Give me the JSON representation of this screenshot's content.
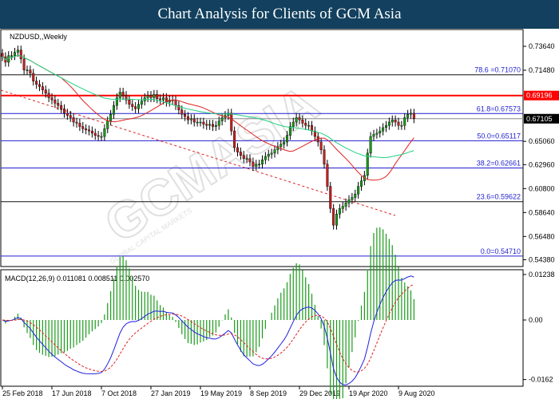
{
  "header": {
    "title": "Chart Analysis for Clients of GCM Asia"
  },
  "watermark": "GCMASIA",
  "watermark_sub": "GLOBAL CAPITAL MARKETS",
  "chart_data": [
    {
      "type": "candlestick",
      "symbol_label": "NZDUSD,,Weekly",
      "ylim": [
        0.5438,
        0.7364
      ],
      "y_ticks": [
        "0.73640",
        "0.71480",
        "0.65060",
        "0.62960",
        "0.60800",
        "0.58640",
        "0.56480",
        "0.54380"
      ],
      "y_tick_values": [
        0.7364,
        0.7148,
        0.6506,
        0.6296,
        0.608,
        0.5864,
        0.5648,
        0.5438
      ],
      "x_ticks": [
        "25 Feb 2018",
        "17 Jun 2018",
        "7 Oct 2018",
        "27 Jan 2019",
        "19 May 2019",
        "8 Sep 2019",
        "29 Dec 2019",
        "19 Apr 2020",
        "9 Aug 2020"
      ],
      "x_tick_weeks": [
        0,
        16,
        32,
        48,
        64,
        80,
        96,
        112,
        128
      ],
      "closes": [
        0.727,
        0.722,
        0.728,
        0.728,
        0.731,
        0.733,
        0.725,
        0.715,
        0.715,
        0.712,
        0.705,
        0.702,
        0.7,
        0.697,
        0.694,
        0.69,
        0.688,
        0.685,
        0.683,
        0.68,
        0.676,
        0.674,
        0.672,
        0.668,
        0.667,
        0.664,
        0.662,
        0.661,
        0.66,
        0.658,
        0.656,
        0.655,
        0.655,
        0.662,
        0.669,
        0.675,
        0.683,
        0.69,
        0.695,
        0.692,
        0.688,
        0.684,
        0.682,
        0.68,
        0.684,
        0.687,
        0.69,
        0.692,
        0.69,
        0.693,
        0.689,
        0.688,
        0.69,
        0.686,
        0.688,
        0.688,
        0.683,
        0.679,
        0.675,
        0.673,
        0.67,
        0.671,
        0.668,
        0.668,
        0.668,
        0.666,
        0.665,
        0.666,
        0.664,
        0.665,
        0.669,
        0.672,
        0.674,
        0.676,
        0.66,
        0.645,
        0.641,
        0.638,
        0.635,
        0.635,
        0.632,
        0.628,
        0.63,
        0.63,
        0.634,
        0.637,
        0.639,
        0.64,
        0.643,
        0.646,
        0.648,
        0.65,
        0.656,
        0.664,
        0.668,
        0.672,
        0.67,
        0.667,
        0.665,
        0.665,
        0.66,
        0.655,
        0.65,
        0.643,
        0.63,
        0.61,
        0.59,
        0.575,
        0.585,
        0.59,
        0.592,
        0.595,
        0.598,
        0.6,
        0.603,
        0.61,
        0.615,
        0.62,
        0.64,
        0.655,
        0.657,
        0.658,
        0.66,
        0.663,
        0.665,
        0.668,
        0.67,
        0.668,
        0.665,
        0.665,
        0.672,
        0.675,
        0.676,
        0.671
      ],
      "fib_levels": [
        {
          "label": "78.6 =0.71070",
          "value": 0.7107
        },
        {
          "label": "61.8=0.67573",
          "value": 0.67573
        },
        {
          "label": "50.0=0.65117",
          "value": 0.65117
        },
        {
          "label": "38.2=0.62661",
          "value": 0.62661
        },
        {
          "label": "23.6=0.59622",
          "value": 0.59622
        },
        {
          "label": "0.0=0.54710",
          "value": 0.5471
        }
      ],
      "resistance": {
        "label": "0.69196",
        "value": 0.69196,
        "color": "#ff0000"
      },
      "current_price": {
        "label": "0.67105",
        "value": 0.67105
      },
      "colors": {
        "bull": "#1a9b1a",
        "bear": "#c81e1e",
        "fast_ma": "#e02020",
        "slow_ma": "#20d080",
        "fib": "#1f1fd0"
      }
    },
    {
      "type": "macd",
      "label": "MACD(12,26,9) 0.011081 0.008511 0.002570",
      "ylim": [
        -0.0162,
        0.01238
      ],
      "y_ticks": [
        "0.01238",
        "0.00",
        "-0.0162"
      ],
      "y_tick_values": [
        0.01238,
        0,
        -0.0162
      ],
      "colors": {
        "macd": "#2020e0",
        "signal": "#e02020",
        "histogram": "#1a9b1a"
      }
    }
  ]
}
